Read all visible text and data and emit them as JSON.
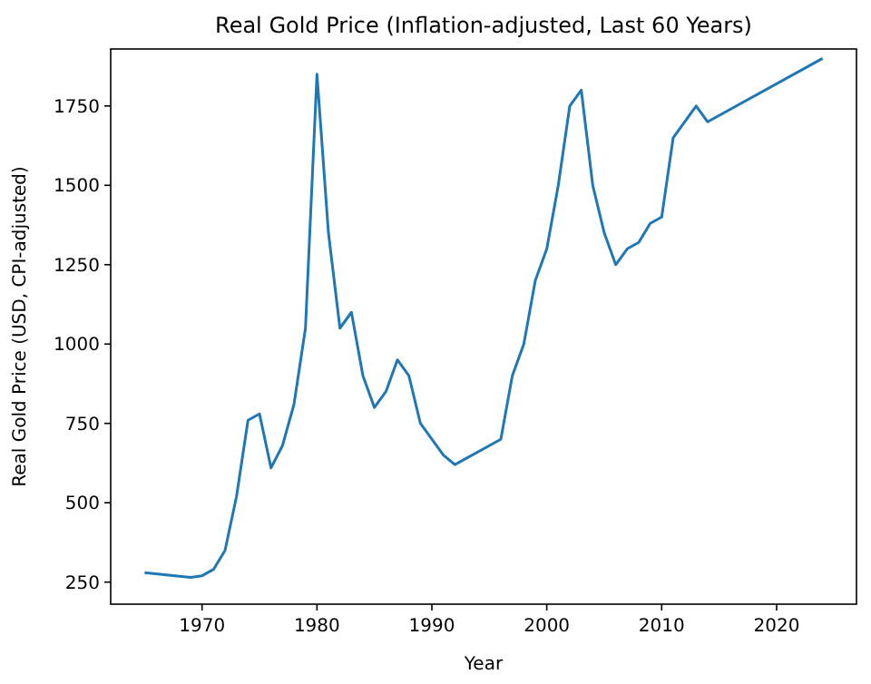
{
  "chart_data": {
    "type": "line",
    "title": "Real Gold Price (Inflation-adjusted, Last 60 Years)",
    "xlabel": "Year",
    "ylabel": "Real Gold Price (USD, CPI-adjusted)",
    "x": [
      1965,
      1969,
      1970,
      1971,
      1972,
      1973,
      1974,
      1975,
      1976,
      1977,
      1978,
      1979,
      1980,
      1981,
      1982,
      1983,
      1984,
      1985,
      1986,
      1987,
      1988,
      1989,
      1990,
      1991,
      1992,
      1996,
      1997,
      1998,
      1999,
      2000,
      2001,
      2002,
      2003,
      2004,
      2005,
      2006,
      2007,
      2008,
      2009,
      2010,
      2011,
      2013,
      2014,
      2024
    ],
    "series": [
      {
        "color": "#1f77b4",
        "values": [
          280,
          265,
          270,
          290,
          350,
          520,
          760,
          780,
          610,
          680,
          810,
          1050,
          1850,
          1350,
          1050,
          1100,
          900,
          800,
          850,
          950,
          900,
          750,
          700,
          650,
          620,
          700,
          900,
          1000,
          1200,
          1300,
          1500,
          1750,
          1800,
          1500,
          1350,
          1250,
          1300,
          1320,
          1380,
          1400,
          1650,
          1750,
          1700,
          1900
        ]
      }
    ],
    "xlim": [
      1962.05,
      2026.95
    ],
    "xticks": [
      1970,
      1980,
      1990,
      2000,
      2010,
      2020
    ],
    "ylim": [
      180.5,
      1929.5
    ],
    "yticks": [
      250,
      500,
      750,
      1000,
      1250,
      1500,
      1750
    ],
    "grid": false
  }
}
